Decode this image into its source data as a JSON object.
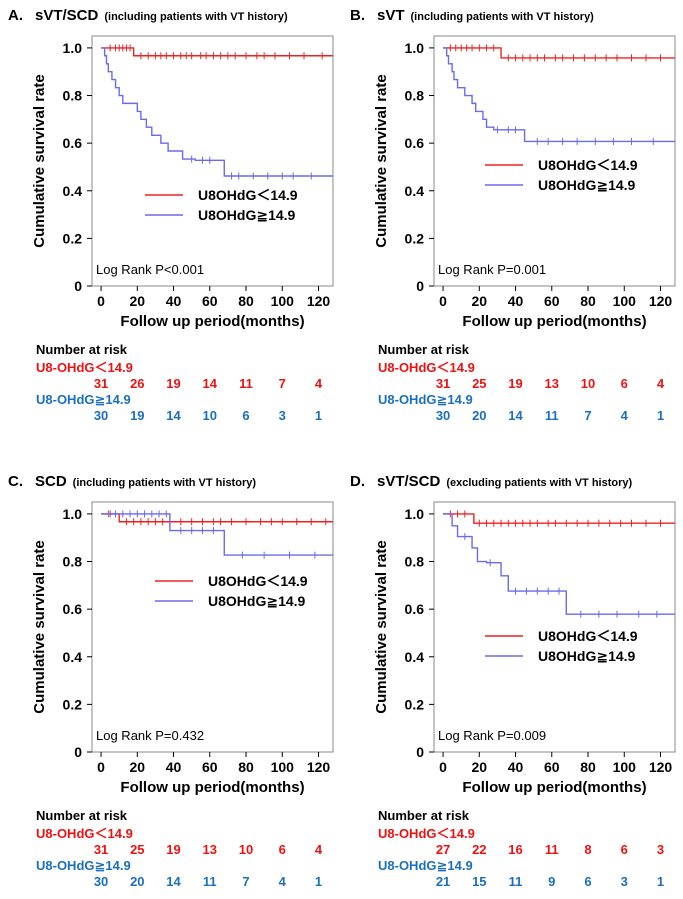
{
  "colors": {
    "low": "#ee2222",
    "high": "#6a6aee",
    "risk_low": "#ee1111",
    "risk_high": "#1a6fbf",
    "axis": "#000000"
  },
  "chart_data": [
    {
      "type": "line",
      "panel_letter": "A.",
      "title": "sVT/SCD",
      "subtitle": "(including patients with VT history)",
      "xlabel": "Follow up period(months)",
      "ylabel": "Cumulative survival rate",
      "xlim": [
        -5,
        128
      ],
      "ylim": [
        0,
        1.05
      ],
      "xticks": [
        0,
        20,
        40,
        60,
        80,
        100,
        120
      ],
      "yticks": [
        {
          "v": 0,
          "label": "0"
        },
        {
          "v": 0.2,
          "label": "0.2"
        },
        {
          "v": 0.4,
          "label": "0.4"
        },
        {
          "v": 0.6,
          "label": "0.6"
        },
        {
          "v": 0.8,
          "label": "0.8"
        },
        {
          "v": 1.0,
          "label": "1.0"
        }
      ],
      "note": "Log Rank P<0.001",
      "legend_position": "center-right",
      "series": [
        {
          "name": "U8OHdG＜14.9",
          "color_key": "low",
          "steps": [
            [
              0,
              1.0
            ],
            [
              18,
              0.967
            ],
            [
              128,
              0.967
            ]
          ],
          "censor": [
            5,
            8,
            10,
            12,
            14,
            16,
            22,
            26,
            30,
            33,
            36,
            40,
            44,
            47,
            50,
            55,
            58,
            62,
            66,
            70,
            74,
            80,
            86,
            90,
            96,
            104,
            112,
            122
          ]
        },
        {
          "name": "U8OHdG≧14.9",
          "color_key": "high",
          "steps": [
            [
              0,
              1.0
            ],
            [
              2,
              0.967
            ],
            [
              3,
              0.933
            ],
            [
              4,
              0.9
            ],
            [
              6,
              0.867
            ],
            [
              8,
              0.833
            ],
            [
              10,
              0.8
            ],
            [
              12,
              0.767
            ],
            [
              20,
              0.733
            ],
            [
              22,
              0.7
            ],
            [
              25,
              0.667
            ],
            [
              28,
              0.633
            ],
            [
              33,
              0.6
            ],
            [
              37,
              0.567
            ],
            [
              45,
              0.533
            ],
            [
              52,
              0.528
            ],
            [
              68,
              0.462
            ],
            [
              128,
              0.462
            ]
          ],
          "censor": [
            50,
            56,
            60,
            72,
            76,
            84,
            92,
            100,
            106,
            116
          ]
        }
      ],
      "risk": {
        "title": "Number at risk",
        "groups": [
          {
            "label": "U8-OHdG＜14.9",
            "color_key": "risk_low",
            "values": [
              "31",
              "26",
              "19",
              "14",
              "11",
              "7",
              "4"
            ]
          },
          {
            "label": "U8-OHdG≧14.9",
            "color_key": "risk_high",
            "values": [
              "30",
              "19",
              "14",
              "10",
              "6",
              "3",
              "1"
            ]
          }
        ]
      }
    },
    {
      "type": "line",
      "panel_letter": "B.",
      "title": "sVT",
      "subtitle": "(including patients with VT history)",
      "xlabel": "Follow up period(months)",
      "ylabel": "Cumulative survival rate",
      "xlim": [
        -5,
        128
      ],
      "ylim": [
        0,
        1.05
      ],
      "xticks": [
        0,
        20,
        40,
        60,
        80,
        100,
        120
      ],
      "yticks": [
        {
          "v": 0,
          "label": "0"
        },
        {
          "v": 0.2,
          "label": "0.2"
        },
        {
          "v": 0.4,
          "label": "0.4"
        },
        {
          "v": 0.6,
          "label": "0.6"
        },
        {
          "v": 0.8,
          "label": "0.8"
        },
        {
          "v": 1.0,
          "label": "1.0"
        }
      ],
      "note": "Log Rank P=0.001",
      "legend_position": "center-right",
      "series": [
        {
          "name": "U8OHdG＜14.9",
          "color_key": "low",
          "steps": [
            [
              0,
              1.0
            ],
            [
              32,
              0.958
            ],
            [
              128,
              0.958
            ]
          ],
          "censor": [
            4,
            7,
            10,
            13,
            16,
            20,
            24,
            28,
            36,
            40,
            44,
            48,
            52,
            56,
            62,
            66,
            72,
            78,
            84,
            90,
            96,
            104,
            112,
            120
          ]
        },
        {
          "name": "U8OHdG≧14.9",
          "color_key": "high",
          "steps": [
            [
              0,
              1.0
            ],
            [
              2,
              0.967
            ],
            [
              3,
              0.933
            ],
            [
              5,
              0.9
            ],
            [
              6,
              0.867
            ],
            [
              8,
              0.833
            ],
            [
              12,
              0.8
            ],
            [
              16,
              0.767
            ],
            [
              18,
              0.733
            ],
            [
              22,
              0.7
            ],
            [
              24,
              0.667
            ],
            [
              28,
              0.656
            ],
            [
              45,
              0.607
            ],
            [
              128,
              0.607
            ]
          ],
          "censor": [
            30,
            36,
            40,
            52,
            58,
            66,
            74,
            84,
            94,
            104,
            116
          ]
        }
      ],
      "risk": {
        "title": "Number at risk",
        "groups": [
          {
            "label": "U8-OHdG＜14.9",
            "color_key": "risk_low",
            "values": [
              "31",
              "25",
              "19",
              "13",
              "10",
              "6",
              "4"
            ]
          },
          {
            "label": "U8-OHdG≧14.9",
            "color_key": "risk_high",
            "values": [
              "30",
              "20",
              "14",
              "11",
              "7",
              "4",
              "1"
            ]
          }
        ]
      }
    },
    {
      "type": "line",
      "panel_letter": "C.",
      "title": "SCD",
      "subtitle": "(including patients with VT history)",
      "xlabel": "Follow up period(months)",
      "ylabel": "Cumulative survival rate",
      "xlim": [
        -5,
        128
      ],
      "ylim": [
        0,
        1.05
      ],
      "xticks": [
        0,
        20,
        40,
        60,
        80,
        100,
        120
      ],
      "yticks": [
        {
          "v": 0,
          "label": "0"
        },
        {
          "v": 0.2,
          "label": "0.2"
        },
        {
          "v": 0.4,
          "label": "0.4"
        },
        {
          "v": 0.6,
          "label": "0.6"
        },
        {
          "v": 0.8,
          "label": "0.8"
        },
        {
          "v": 1.0,
          "label": "1.0"
        }
      ],
      "note": "Log Rank P=0.432",
      "legend_position": "center-right",
      "series": [
        {
          "name": "U8OHdG＜14.9",
          "color_key": "low",
          "steps": [
            [
              0,
              1.0
            ],
            [
              10,
              0.967
            ],
            [
              128,
              0.967
            ]
          ],
          "censor": [
            5,
            14,
            18,
            22,
            26,
            30,
            34,
            38,
            44,
            50,
            56,
            62,
            66,
            72,
            80,
            88,
            94,
            100,
            108,
            116,
            124
          ]
        },
        {
          "name": "U8OHdG≧14.9",
          "color_key": "high",
          "steps": [
            [
              0,
              1.0
            ],
            [
              38,
              0.93
            ],
            [
              68,
              0.827
            ],
            [
              128,
              0.827
            ]
          ],
          "censor": [
            4,
            8,
            12,
            16,
            20,
            24,
            28,
            32,
            36,
            44,
            50,
            56,
            62,
            78,
            90,
            104,
            118
          ]
        }
      ],
      "risk": {
        "title": "Number at risk",
        "groups": [
          {
            "label": "U8-OHdG＜14.9",
            "color_key": "risk_low",
            "values": [
              "31",
              "25",
              "19",
              "13",
              "10",
              "6",
              "4"
            ]
          },
          {
            "label": "U8-OHdG≧14.9",
            "color_key": "risk_high",
            "values": [
              "30",
              "20",
              "14",
              "11",
              "7",
              "4",
              "1"
            ]
          }
        ]
      }
    },
    {
      "type": "line",
      "panel_letter": "D.",
      "title": "sVT/SCD",
      "subtitle": "(excluding patients with VT history)",
      "xlabel": "Follow up period(months)",
      "ylabel": "Cumulative survival rate",
      "xlim": [
        -5,
        128
      ],
      "ylim": [
        0,
        1.05
      ],
      "xticks": [
        0,
        20,
        40,
        60,
        80,
        100,
        120
      ],
      "yticks": [
        {
          "v": 0,
          "label": "0"
        },
        {
          "v": 0.2,
          "label": "0.2"
        },
        {
          "v": 0.4,
          "label": "0.4"
        },
        {
          "v": 0.6,
          "label": "0.6"
        },
        {
          "v": 0.8,
          "label": "0.8"
        },
        {
          "v": 1.0,
          "label": "1.0"
        }
      ],
      "note": "Log Rank P=0.009",
      "legend_position": "center-right",
      "series": [
        {
          "name": "U8OHdG＜14.9",
          "color_key": "low",
          "steps": [
            [
              0,
              1.0
            ],
            [
              17,
              0.961
            ],
            [
              128,
              0.961
            ]
          ],
          "censor": [
            4,
            8,
            12,
            20,
            24,
            28,
            32,
            36,
            40,
            44,
            48,
            52,
            58,
            62,
            68,
            74,
            80,
            86,
            92,
            98,
            104,
            112,
            120
          ]
        },
        {
          "name": "U8OHdG≧14.9",
          "color_key": "high",
          "steps": [
            [
              0,
              1.0
            ],
            [
              5,
              0.95
            ],
            [
              8,
              0.905
            ],
            [
              16,
              0.857
            ],
            [
              19,
              0.8
            ],
            [
              24,
              0.795
            ],
            [
              32,
              0.74
            ],
            [
              36,
              0.676
            ],
            [
              68,
              0.579
            ],
            [
              128,
              0.579
            ]
          ],
          "censor": [
            12,
            26,
            40,
            46,
            52,
            58,
            64,
            76,
            86,
            96,
            108,
            118
          ]
        }
      ],
      "risk": {
        "title": "Number at risk",
        "groups": [
          {
            "label": "U8-OHdG＜14.9",
            "color_key": "risk_low",
            "values": [
              "27",
              "22",
              "16",
              "11",
              "8",
              "6",
              "3"
            ]
          },
          {
            "label": "U8-OHdG≧14.9",
            "color_key": "risk_high",
            "values": [
              "21",
              "15",
              "11",
              "9",
              "6",
              "3",
              "1"
            ]
          }
        ]
      }
    }
  ]
}
